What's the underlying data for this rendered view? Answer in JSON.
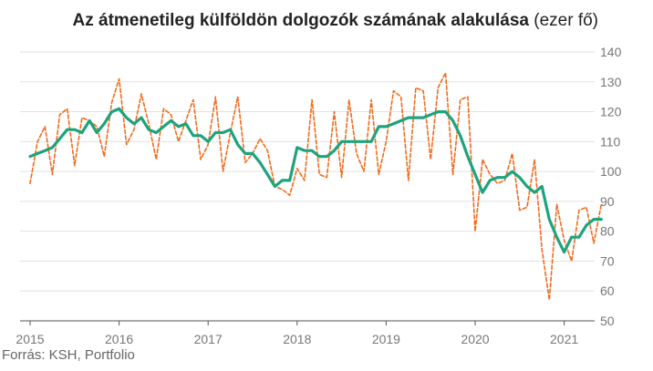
{
  "title": {
    "main": "Az átmenetileg külföldön dolgozók számának alakulása",
    "unit": "(ezer fő)"
  },
  "source": "Forrás: KSH, Portfolio",
  "colors": {
    "monthly": "#f26a1b",
    "trend": "#1fa37c",
    "grid": "#e2e2e2",
    "text": "#777777"
  },
  "chart_data": {
    "type": "line",
    "title": "Az átmenetileg külföldön dolgozók számának alakulása (ezer fő)",
    "ylim": [
      50,
      140
    ],
    "y_ticks": [
      "50",
      "60",
      "70",
      "80",
      "90",
      "100",
      "110",
      "120",
      "130",
      "140"
    ],
    "x_ticks": [
      "2015",
      "2016",
      "2017",
      "2018",
      "2019",
      "2020",
      "2021"
    ],
    "grid": "horizontal",
    "x_start_year": 2015,
    "series": [
      {
        "style": "dashed",
        "values": [
          96,
          110,
          115,
          99,
          119,
          121,
          102,
          118,
          117,
          115,
          105,
          123,
          131,
          109,
          114,
          126,
          116,
          104,
          121,
          119,
          110,
          117,
          124,
          104,
          109,
          125,
          100,
          113,
          125,
          103,
          106,
          111,
          107,
          95,
          94,
          92,
          101,
          97,
          124,
          99,
          98,
          120,
          98,
          124,
          106,
          100,
          124,
          99,
          110,
          127,
          125,
          97,
          128,
          127,
          104,
          128,
          133,
          99,
          124,
          125,
          80,
          104,
          99,
          96,
          97,
          106,
          87,
          88,
          104,
          74,
          57,
          89,
          77,
          70,
          87,
          88,
          76,
          89
        ],
        "interval": "monthly"
      },
      {
        "style": "solid",
        "values": [
          105,
          106,
          107,
          108,
          111,
          114,
          114,
          113,
          117,
          113,
          116,
          120,
          121,
          118,
          116,
          118,
          114,
          113,
          115,
          117,
          115,
          116,
          112,
          112,
          110,
          113,
          113,
          114,
          109,
          106,
          106,
          103,
          99,
          95,
          97,
          97,
          108,
          107,
          107,
          105,
          105,
          107,
          110,
          110,
          110,
          110,
          110,
          115,
          115,
          116,
          117,
          118,
          118,
          118,
          119,
          120,
          120,
          117,
          112,
          105,
          99,
          93,
          97,
          98,
          98,
          100,
          98,
          95,
          93,
          95,
          84,
          78,
          73,
          78,
          78,
          82,
          84,
          84
        ],
        "interval": "monthly"
      }
    ]
  }
}
